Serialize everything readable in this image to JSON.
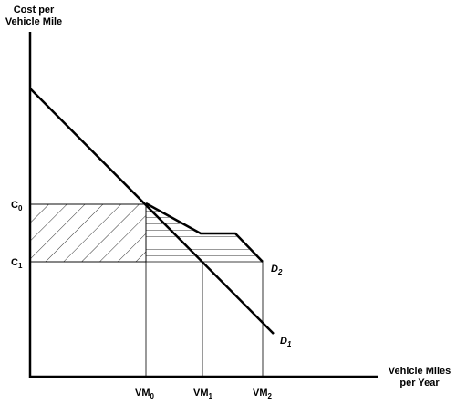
{
  "axes": {
    "y_label": [
      "Cost per",
      "Vehicle Mile"
    ],
    "x_label": [
      "Vehicle Miles",
      "per Year"
    ]
  },
  "y_marks": [
    {
      "main": "C",
      "sub": "0"
    },
    {
      "main": "C",
      "sub": "1"
    }
  ],
  "x_marks": [
    {
      "main": "VM",
      "sub": "0"
    },
    {
      "main": "VM",
      "sub": "1"
    },
    {
      "main": "VM",
      "sub": "2"
    }
  ],
  "curves": [
    {
      "main": "D",
      "sub": "1"
    },
    {
      "main": "D",
      "sub": "2"
    }
  ]
}
